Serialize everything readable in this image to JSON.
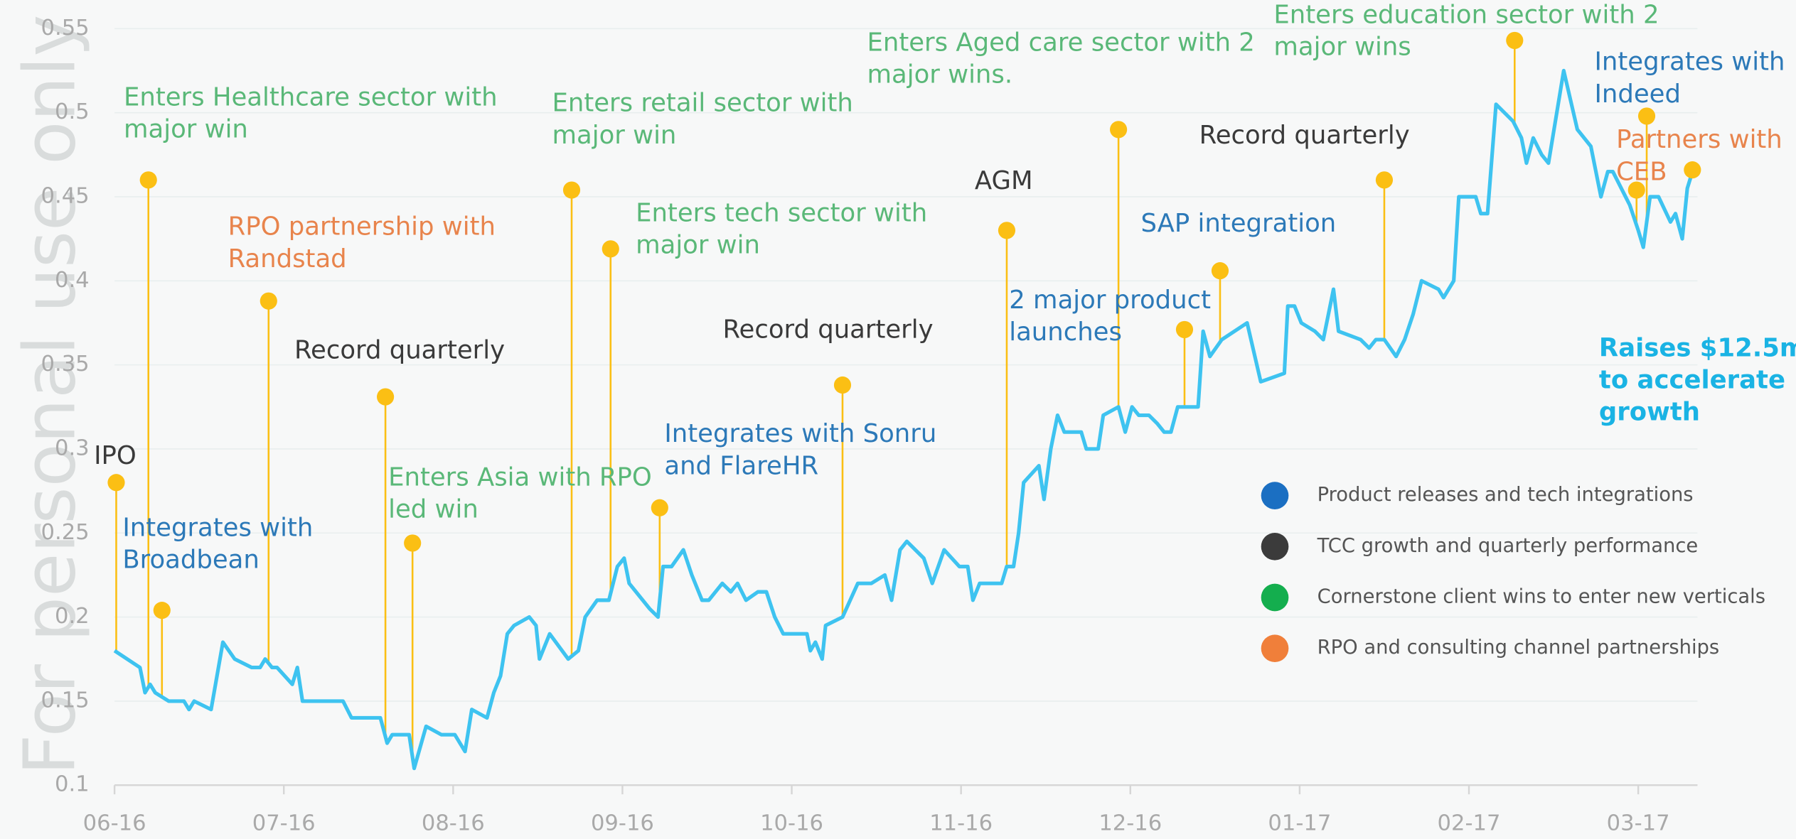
{
  "chart_data": {
    "type": "line",
    "watermark": "For personal use only",
    "xlim": [
      0,
      9.35
    ],
    "ylim": [
      0.1,
      0.55
    ],
    "xticks": [
      {
        "value": 0,
        "label": "06-16"
      },
      {
        "value": 1,
        "label": "07-16"
      },
      {
        "value": 2,
        "label": "08-16"
      },
      {
        "value": 3,
        "label": "09-16"
      },
      {
        "value": 4,
        "label": "10-16"
      },
      {
        "value": 5,
        "label": "11-16"
      },
      {
        "value": 6,
        "label": "12-16"
      },
      {
        "value": 7,
        "label": "01-17"
      },
      {
        "value": 8,
        "label": "02-17"
      },
      {
        "value": 9,
        "label": "03-17"
      }
    ],
    "yticks": [
      0.1,
      0.15,
      0.2,
      0.25,
      0.3,
      0.35,
      0.4,
      0.45,
      0.5,
      0.55
    ],
    "grid": true,
    "color": "#3ec3f0",
    "marker_color": "#fbbf14",
    "x": [
      0,
      0.15,
      0.18,
      0.21,
      0.24,
      0.32,
      0.41,
      0.44,
      0.47,
      0.57,
      0.64,
      0.71,
      0.81,
      0.86,
      0.89,
      0.93,
      0.96,
      1.05,
      1.08,
      1.11,
      1.35,
      1.4,
      1.57,
      1.61,
      1.64,
      1.74,
      1.77,
      1.84,
      1.93,
      2.01,
      2.07,
      2.11,
      2.2,
      2.24,
      2.28,
      2.32,
      2.36,
      2.45,
      2.49,
      2.51,
      2.57,
      2.68,
      2.74,
      2.78,
      2.85,
      2.92,
      2.97,
      3.01,
      3.04,
      3.16,
      3.21,
      3.24,
      3.29,
      3.36,
      3.41,
      3.47,
      3.51,
      3.59,
      3.64,
      3.68,
      3.73,
      3.8,
      3.85,
      3.9,
      3.95,
      4.09,
      4.11,
      4.14,
      4.18,
      4.2,
      4.3,
      4.39,
      4.47,
      4.55,
      4.59,
      4.64,
      4.68,
      4.78,
      4.83,
      4.9,
      4.99,
      5.04,
      5.07,
      5.11,
      5.24,
      5.27,
      5.31,
      5.34,
      5.37,
      5.46,
      5.49,
      5.53,
      5.57,
      5.61,
      5.71,
      5.74,
      5.81,
      5.84,
      5.93,
      5.97,
      6.01,
      6.05,
      6.11,
      6.16,
      6.2,
      6.24,
      6.28,
      6.4,
      6.43,
      6.47,
      6.54,
      6.69,
      6.77,
      6.91,
      6.93,
      6.97,
      7.01,
      7.09,
      7.14,
      7.2,
      7.23,
      7.36,
      7.41,
      7.45,
      7.5,
      7.57,
      7.62,
      7.67,
      7.72,
      7.82,
      7.85,
      7.91,
      7.94,
      8.04,
      8.07,
      8.11,
      8.16,
      8.26,
      8.31,
      8.34,
      8.38,
      8.43,
      8.47,
      8.56,
      8.64,
      8.72,
      8.78,
      8.82,
      8.85,
      8.95,
      9.0,
      9.03,
      9.07,
      9.12,
      9.19,
      9.22,
      9.26,
      9.29,
      9.32
    ],
    "values": [
      0.18,
      0.17,
      0.155,
      0.16,
      0.155,
      0.15,
      0.15,
      0.145,
      0.15,
      0.145,
      0.185,
      0.175,
      0.17,
      0.17,
      0.175,
      0.17,
      0.17,
      0.16,
      0.17,
      0.15,
      0.15,
      0.14,
      0.14,
      0.125,
      0.13,
      0.13,
      0.11,
      0.135,
      0.13,
      0.13,
      0.12,
      0.145,
      0.14,
      0.155,
      0.165,
      0.19,
      0.195,
      0.2,
      0.195,
      0.175,
      0.19,
      0.175,
      0.18,
      0.2,
      0.21,
      0.21,
      0.23,
      0.235,
      0.22,
      0.205,
      0.2,
      0.23,
      0.23,
      0.24,
      0.225,
      0.21,
      0.21,
      0.22,
      0.215,
      0.22,
      0.21,
      0.215,
      0.215,
      0.2,
      0.19,
      0.19,
      0.18,
      0.185,
      0.175,
      0.195,
      0.2,
      0.22,
      0.22,
      0.225,
      0.21,
      0.24,
      0.245,
      0.235,
      0.22,
      0.24,
      0.23,
      0.23,
      0.21,
      0.22,
      0.22,
      0.23,
      0.23,
      0.25,
      0.28,
      0.29,
      0.27,
      0.3,
      0.32,
      0.31,
      0.31,
      0.3,
      0.3,
      0.32,
      0.325,
      0.31,
      0.325,
      0.32,
      0.32,
      0.315,
      0.31,
      0.31,
      0.325,
      0.325,
      0.37,
      0.355,
      0.365,
      0.375,
      0.34,
      0.345,
      0.385,
      0.385,
      0.375,
      0.37,
      0.365,
      0.395,
      0.37,
      0.365,
      0.36,
      0.365,
      0.365,
      0.355,
      0.365,
      0.38,
      0.4,
      0.395,
      0.39,
      0.4,
      0.45,
      0.45,
      0.44,
      0.44,
      0.505,
      0.495,
      0.485,
      0.47,
      0.485,
      0.475,
      0.47,
      0.525,
      0.49,
      0.48,
      0.45,
      0.465,
      0.465,
      0.445,
      0.43,
      0.42,
      0.45,
      0.45,
      0.435,
      0.44,
      0.425,
      0.455,
      0.465
    ],
    "legend": [
      {
        "name": "Product releases and tech integrations",
        "color": "#1b6fc2"
      },
      {
        "name": "TCC growth and quarterly performance",
        "color": "#3b3b3b"
      },
      {
        "name": "Cornerstone client wins to enter new verticals",
        "color": "#14ae4e"
      },
      {
        "name": "RPO and consulting channel partnerships",
        "color": "#f07f3a"
      }
    ],
    "annotations": [
      {
        "x": 0.01,
        "y": 0.28,
        "lines": [
          "IPO"
        ],
        "color": "#3a3a3a"
      },
      {
        "x": 0.2,
        "y": 0.46,
        "lines": [
          "Enters Healthcare sector with",
          "major win"
        ],
        "color": "#5ab878"
      },
      {
        "x": 0.28,
        "y": 0.204,
        "lines": [
          "Integrates with",
          "Broadbean"
        ],
        "color": "#2c79b8"
      },
      {
        "x": 0.91,
        "y": 0.388,
        "lines": [
          "RPO partnership with",
          "Randstad"
        ],
        "color": "#e8844c"
      },
      {
        "x": 1.6,
        "y": 0.331,
        "lines": [
          "Record quarterly"
        ],
        "color": "#3a3a3a"
      },
      {
        "x": 1.76,
        "y": 0.244,
        "lines": [
          "Enters Asia with RPO",
          "led win"
        ],
        "color": "#5ab878"
      },
      {
        "x": 2.7,
        "y": 0.454,
        "lines": [
          "Enters retail sector with",
          "major win"
        ],
        "color": "#5ab878"
      },
      {
        "x": 2.93,
        "y": 0.419,
        "lines": [
          "Enters tech sector with",
          "major win"
        ],
        "color": "#5ab878"
      },
      {
        "x": 3.22,
        "y": 0.265,
        "lines": [
          "Integrates with Sonru",
          "and FlareHR"
        ],
        "color": "#2c79b8"
      },
      {
        "x": 4.3,
        "y": 0.338,
        "lines": [
          "Record quarterly"
        ],
        "color": "#3a3a3a"
      },
      {
        "x": 5.27,
        "y": 0.43,
        "lines": [
          "AGM"
        ],
        "color": "#3a3a3a"
      },
      {
        "x": 5.93,
        "y": 0.49,
        "lines": [
          "Enters Aged care sector with 2",
          "major wins."
        ],
        "color": "#5ab878"
      },
      {
        "x": 6.32,
        "y": 0.371,
        "lines": [
          "2 major product",
          "launches"
        ],
        "color": "#2c79b8"
      },
      {
        "x": 6.53,
        "y": 0.406,
        "lines": [
          "SAP integration"
        ],
        "color": "#2c79b8"
      },
      {
        "x": 7.5,
        "y": 0.46,
        "lines": [
          "Record quarterly"
        ],
        "color": "#3a3a3a"
      },
      {
        "x": 8.27,
        "y": 0.543,
        "lines": [
          "Enters education sector with 2",
          "major wins"
        ],
        "color": "#5ab878"
      },
      {
        "x": 9.05,
        "y": 0.498,
        "lines": [
          "Integrates with",
          "Indeed"
        ],
        "color": "#2c79b8"
      },
      {
        "x": 8.99,
        "y": 0.454,
        "lines": [
          "Partners with",
          "CEB"
        ],
        "color": "#e8844c"
      },
      {
        "x": 9.32,
        "y": 0.466,
        "lines": [
          "Raises $12.5m",
          "to accelerate",
          "growth"
        ],
        "color": "#1ab3e4",
        "bold": true
      }
    ]
  }
}
